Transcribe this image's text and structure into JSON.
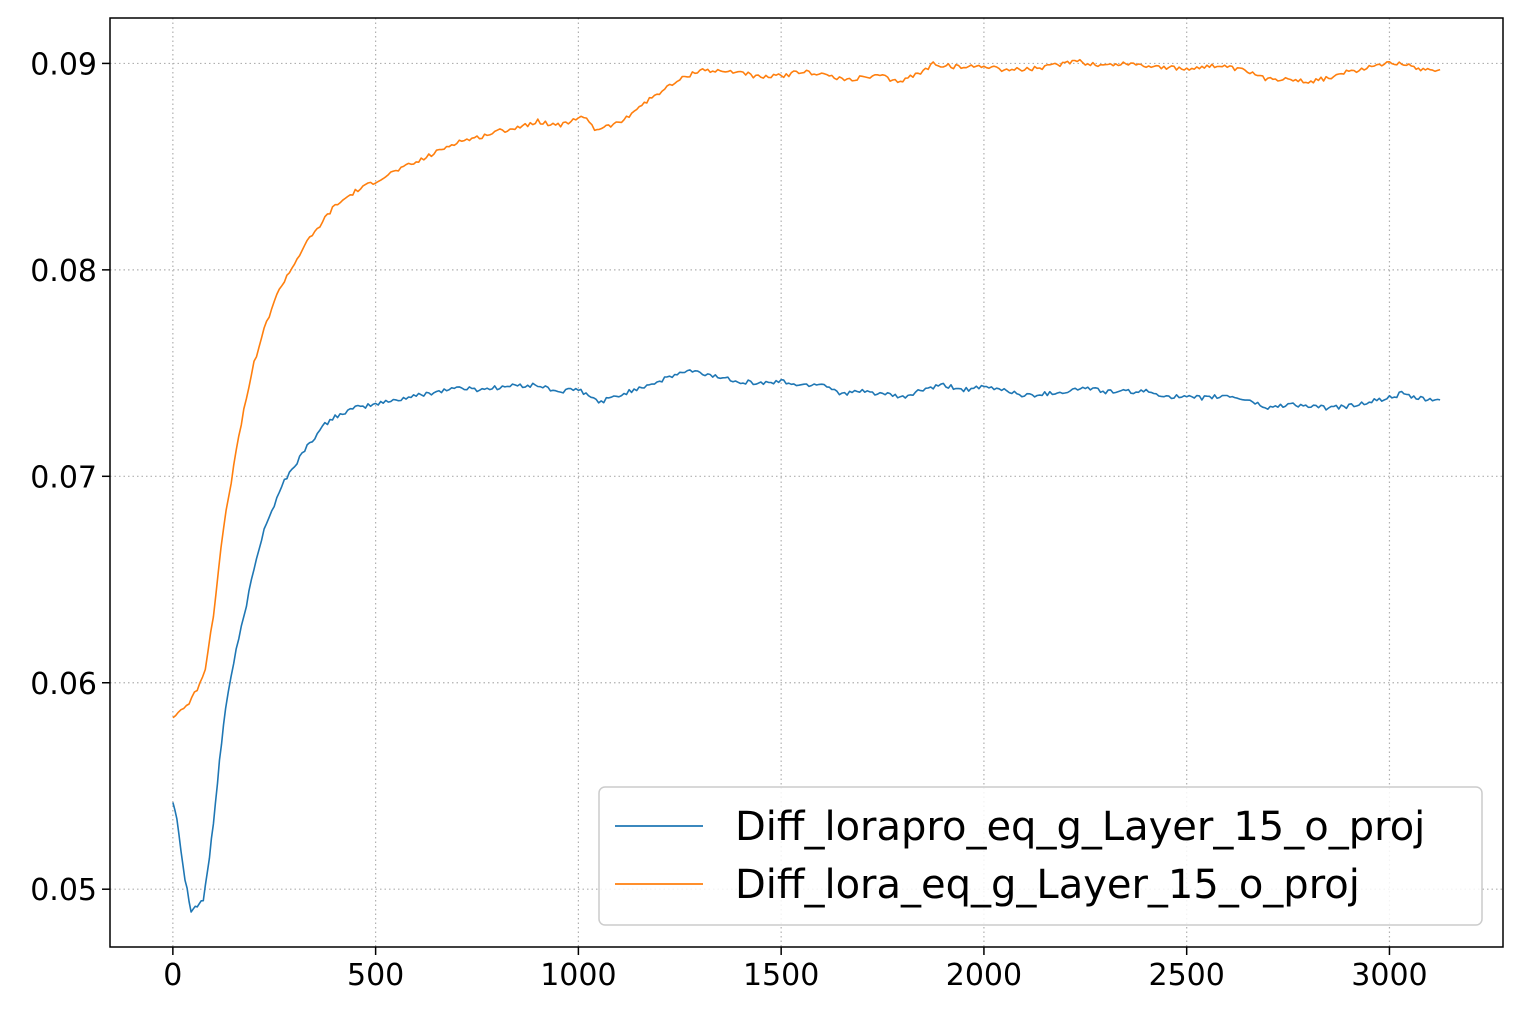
{
  "chart_data": {
    "type": "line",
    "title": "",
    "xlabel": "",
    "ylabel": "",
    "xlim": [
      -155,
      3280
    ],
    "ylim": [
      0.0472,
      0.0922
    ],
    "xticks": [
      0,
      500,
      1000,
      1500,
      2000,
      2500,
      3000
    ],
    "xtick_labels": [
      "0",
      "500",
      "1000",
      "1500",
      "2000",
      "2500",
      "3000"
    ],
    "yticks": [
      0.05,
      0.06,
      0.07,
      0.08,
      0.09
    ],
    "ytick_labels": [
      "0.05",
      "0.06",
      "0.07",
      "0.08",
      "0.09"
    ],
    "grid": true,
    "legend_position": "lower-right",
    "series": [
      {
        "name": "Diff_lorapro_eq_g_Layer_15_o_proj",
        "color": "#1f77b4",
        "x": [
          0,
          10,
          20,
          30,
          45,
          60,
          75,
          90,
          100,
          115,
          130,
          150,
          175,
          200,
          225,
          250,
          275,
          300,
          325,
          350,
          375,
          400,
          425,
          450,
          500,
          550,
          600,
          650,
          700,
          750,
          800,
          850,
          900,
          950,
          1000,
          1050,
          1100,
          1150,
          1200,
          1250,
          1275,
          1300,
          1350,
          1400,
          1450,
          1500,
          1550,
          1600,
          1650,
          1700,
          1750,
          1800,
          1850,
          1900,
          1950,
          2000,
          2050,
          2100,
          2150,
          2200,
          2250,
          2300,
          2350,
          2400,
          2450,
          2500,
          2550,
          2600,
          2650,
          2700,
          2750,
          2800,
          2850,
          2900,
          2950,
          3000,
          3030,
          3060,
          3100,
          3125
        ],
        "y": [
          0.0542,
          0.0535,
          0.0519,
          0.0505,
          0.049,
          0.0492,
          0.0495,
          0.0515,
          0.0532,
          0.0562,
          0.0588,
          0.061,
          0.0632,
          0.0655,
          0.0675,
          0.0686,
          0.0698,
          0.0705,
          0.0713,
          0.0719,
          0.0725,
          0.0729,
          0.0731,
          0.0733,
          0.0735,
          0.0737,
          0.0739,
          0.0741,
          0.0743,
          0.0742,
          0.0743,
          0.0744,
          0.0744,
          0.0741,
          0.0742,
          0.0736,
          0.0739,
          0.0743,
          0.0746,
          0.075,
          0.0751,
          0.075,
          0.0748,
          0.0746,
          0.0745,
          0.0746,
          0.0744,
          0.0745,
          0.074,
          0.0741,
          0.074,
          0.0738,
          0.0742,
          0.0744,
          0.0742,
          0.0743,
          0.0742,
          0.0739,
          0.074,
          0.0741,
          0.0743,
          0.0741,
          0.0741,
          0.0741,
          0.0739,
          0.0738,
          0.0738,
          0.0739,
          0.0737,
          0.0733,
          0.0735,
          0.0734,
          0.0733,
          0.0734,
          0.0736,
          0.0738,
          0.074,
          0.0738,
          0.0737,
          0.0737
        ]
      },
      {
        "name": "Diff_lora_eq_g_Layer_15_o_proj",
        "color": "#ff7f0e",
        "x": [
          0,
          20,
          40,
          60,
          80,
          100,
          125,
          150,
          175,
          200,
          225,
          250,
          275,
          300,
          325,
          350,
          375,
          400,
          450,
          500,
          550,
          600,
          650,
          700,
          750,
          800,
          850,
          900,
          950,
          1000,
          1020,
          1040,
          1080,
          1100,
          1150,
          1200,
          1250,
          1300,
          1350,
          1400,
          1450,
          1500,
          1550,
          1600,
          1650,
          1700,
          1750,
          1775,
          1800,
          1850,
          1875,
          1900,
          1950,
          2000,
          2050,
          2100,
          2150,
          2200,
          2230,
          2250,
          2300,
          2350,
          2400,
          2450,
          2500,
          2550,
          2600,
          2650,
          2700,
          2750,
          2800,
          2850,
          2900,
          2950,
          3000,
          3030,
          3060,
          3100,
          3125
        ],
        "y": [
          0.0583,
          0.0587,
          0.059,
          0.0597,
          0.0607,
          0.0633,
          0.0675,
          0.0705,
          0.0732,
          0.0755,
          0.0771,
          0.0785,
          0.0795,
          0.0803,
          0.0812,
          0.0818,
          0.0825,
          0.0831,
          0.0838,
          0.0843,
          0.0848,
          0.0852,
          0.0857,
          0.0862,
          0.0864,
          0.0867,
          0.0869,
          0.0872,
          0.087,
          0.0873,
          0.0874,
          0.0868,
          0.087,
          0.0871,
          0.0879,
          0.0886,
          0.0892,
          0.0897,
          0.0896,
          0.0896,
          0.0893,
          0.0894,
          0.0896,
          0.0895,
          0.0892,
          0.0893,
          0.0894,
          0.0891,
          0.0892,
          0.0896,
          0.09,
          0.0899,
          0.0898,
          0.0899,
          0.0897,
          0.0897,
          0.0898,
          0.09,
          0.0902,
          0.09,
          0.0899,
          0.09,
          0.0899,
          0.0898,
          0.0897,
          0.0899,
          0.0898,
          0.0896,
          0.0892,
          0.0893,
          0.0891,
          0.0893,
          0.0896,
          0.0898,
          0.0901,
          0.09,
          0.0898,
          0.0897,
          0.0897
        ]
      }
    ]
  }
}
